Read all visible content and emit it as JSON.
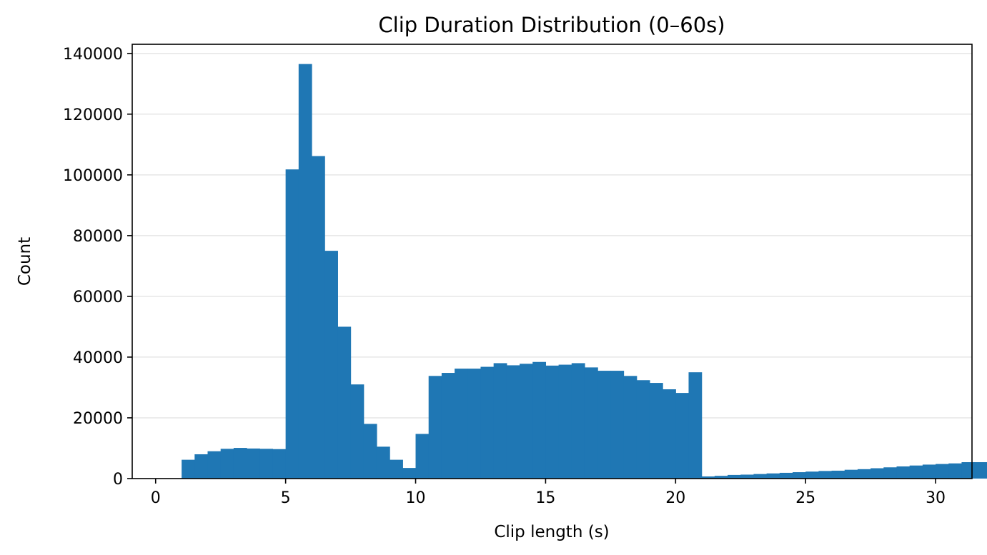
{
  "chart_data": {
    "type": "bar",
    "title": "Clip Duration Distribution (0–60s)",
    "xlabel": "Clip length (s)",
    "ylabel": "Count",
    "xlim": [
      -0.9,
      31.4
    ],
    "ylim": [
      0,
      143000
    ],
    "xticks": [
      0,
      5,
      10,
      15,
      20,
      25,
      30
    ],
    "yticks": [
      0,
      20000,
      40000,
      60000,
      80000,
      100000,
      120000,
      140000
    ],
    "grid": "y",
    "bar_color": "#1f77b4",
    "bin_width": 0.5,
    "bin_start": 1.0,
    "values": [
      6200,
      8000,
      9000,
      9800,
      10100,
      9900,
      9800,
      9700,
      101800,
      136500,
      106200,
      75000,
      50000,
      31000,
      18000,
      10500,
      6200,
      3500,
      14700,
      33800,
      34800,
      36200,
      36200,
      36800,
      38000,
      37300,
      37800,
      38400,
      37200,
      37500,
      38000,
      36600,
      35500,
      35500,
      33800,
      32400,
      31500,
      29400,
      28200,
      35000,
      700,
      900,
      1200,
      1300,
      1500,
      1700,
      1900,
      2100,
      2300,
      2500,
      2600,
      2900,
      3100,
      3400,
      3700,
      4000,
      4300,
      4600,
      4800,
      5000,
      5400,
      5400
    ]
  }
}
